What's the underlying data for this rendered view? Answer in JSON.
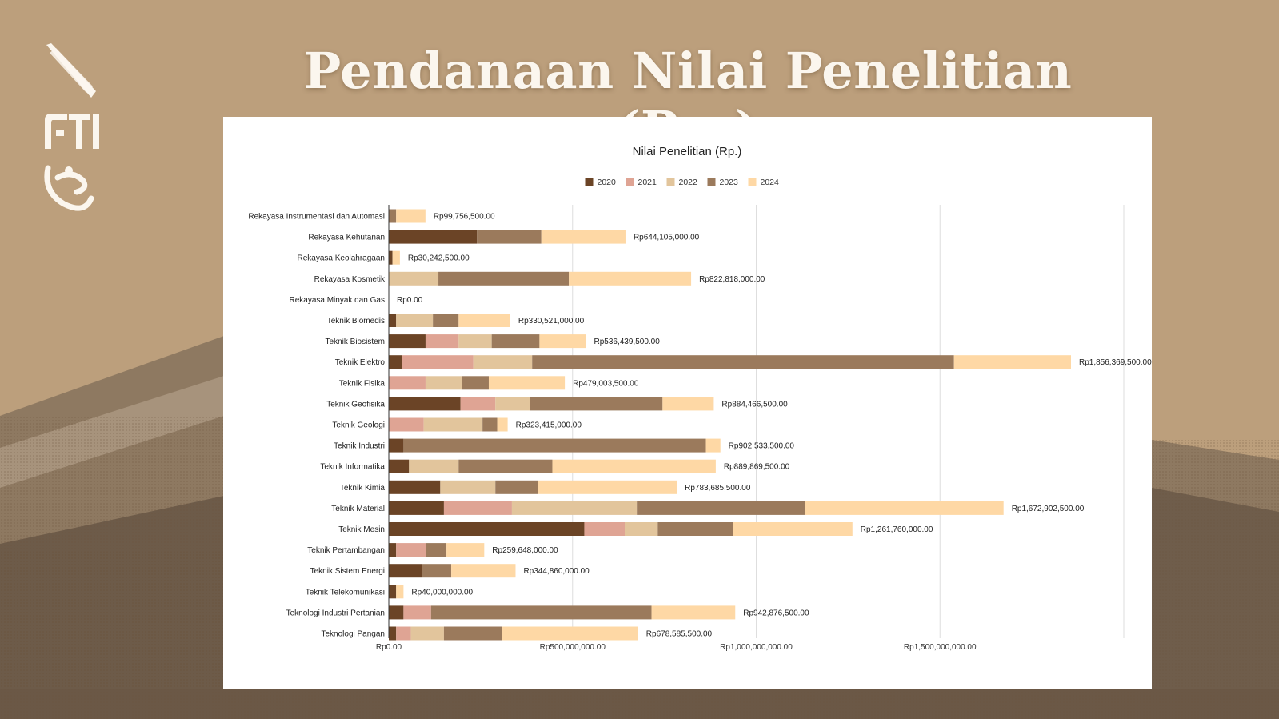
{
  "slide": {
    "title": "Pendanaan Nilai Penelitian (Rp.)",
    "logos": [
      "ITB ganesha logo",
      "FTI logo",
      "flame logo"
    ]
  },
  "chart_data": {
    "type": "bar",
    "orientation": "horizontal",
    "stacked": true,
    "title": "Nilai Penelitian (Rp.)",
    "xlabel": "",
    "ylabel": "",
    "xlim": [
      0,
      2000000000
    ],
    "x_ticks": [
      0,
      500000000,
      1000000000,
      1500000000,
      2000000000
    ],
    "x_tick_labels": [
      "Rp0.00",
      "Rp500,000,000.00",
      "Rp1,000,000,000.00",
      "Rp1,500,000,000.00",
      ""
    ],
    "grid": true,
    "legend_position": "top-center",
    "colors": [
      "#6b4426",
      "#dfa494",
      "#e2c59c",
      "#9b7a5c",
      "#fed8a5"
    ],
    "categories": [
      "Rekayasa Instrumentasi dan Automasi",
      "Rekayasa Kehutanan",
      "Rekayasa Keolahragaan",
      "Rekayasa Kosmetik",
      "Rekayasa Minyak dan Gas",
      "Teknik Biomedis",
      "Teknik Biosistem",
      "Teknik Elektro",
      "Teknik Fisika",
      "Teknik Geofisika",
      "Teknik Geologi",
      "Teknik Industri",
      "Teknik Informatika",
      "Teknik Kimia",
      "Teknik Material",
      "Teknik Mesin",
      "Teknik Pertambangan",
      "Teknik Sistem Energi",
      "Teknik Telekomunikasi",
      "Teknologi Industri Pertanian",
      "Teknologi Pangan"
    ],
    "series": [
      {
        "name": "2020",
        "values": [
          0,
          240000000,
          10000000,
          0,
          0,
          20000000,
          100000000,
          35000000,
          0,
          195000000,
          0,
          40000000,
          55000000,
          140000000,
          150000000,
          532000000,
          20000000,
          90000000,
          20000000,
          40000000,
          20000000
        ]
      },
      {
        "name": "2021",
        "values": [
          0,
          0,
          0,
          0,
          0,
          0,
          90000000,
          195000000,
          100000000,
          95000000,
          95000000,
          0,
          0,
          0,
          185000000,
          110000000,
          82000000,
          0,
          0,
          75000000,
          40000000
        ]
      },
      {
        "name": "2022",
        "values": [
          0,
          0,
          0,
          135000000,
          0,
          100000000,
          90000000,
          160000000,
          100000000,
          95000000,
          160000000,
          0,
          135000000,
          150000000,
          340000000,
          90000000,
          0,
          0,
          0,
          0,
          90000000
        ]
      },
      {
        "name": "2023",
        "values": [
          20000000,
          175000000,
          0,
          355000000,
          0,
          70000000,
          130000000,
          1148000000,
          72000000,
          360000000,
          40000000,
          823000000,
          255000000,
          117000000,
          457000000,
          205000000,
          55000000,
          80000000,
          0,
          600000000,
          158000000
        ]
      },
      {
        "name": "2024",
        "values": [
          79756500,
          229105000,
          20242500,
          332818000,
          0,
          140521000,
          126439500,
          318369500,
          207003500,
          139466500,
          28415000,
          39533500,
          444869500,
          376685500,
          540902500,
          324760000,
          102648000,
          174860000,
          20000000,
          227876500,
          370585500
        ]
      }
    ],
    "totals": [
      99756500,
      644105000,
      30242500,
      822818000,
      0,
      330521000,
      536439500,
      1856369500,
      479003500,
      884466500,
      323415000,
      902533500,
      889869500,
      783685500,
      1672902500,
      1261760000,
      259648000,
      344860000,
      40000000,
      942876500,
      678585500
    ],
    "total_labels": [
      "Rp99,756,500.00",
      "Rp644,105,000.00",
      "Rp30,242,500.00",
      "Rp822,818,000.00",
      "Rp0.00",
      "Rp330,521,000.00",
      "Rp536,439,500.00",
      "Rp1,856,369,500.00",
      "Rp479,003,500.00",
      "Rp884,466,500.00",
      "Rp323,415,000.00",
      "Rp902,533,500.00",
      "Rp889,869,500.00",
      "Rp783,685,500.00",
      "Rp1,672,902,500.00",
      "Rp1,261,760,000.00",
      "Rp259,648,000.00",
      "Rp344,860,000.00",
      "Rp40,000,000.00",
      "Rp942,876,500.00",
      "Rp678,585,500.00"
    ]
  }
}
